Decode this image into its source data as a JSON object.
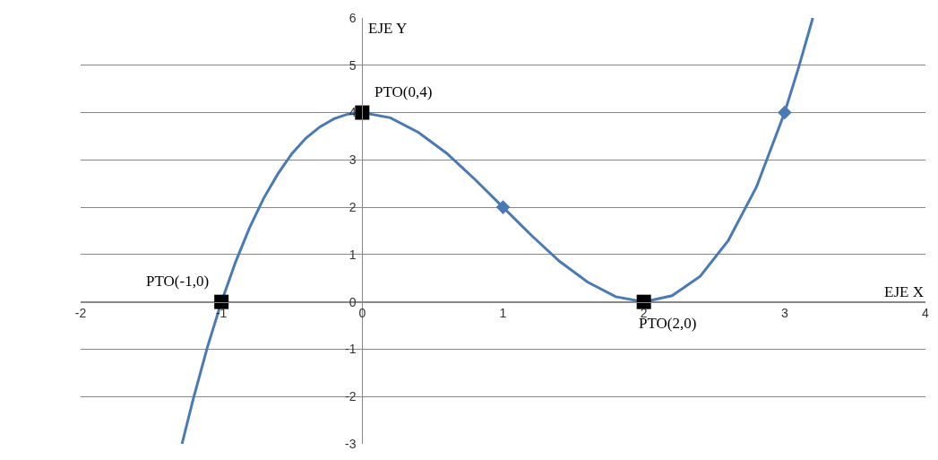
{
  "chart_data": {
    "type": "line",
    "xlabel": "EJE X",
    "ylabel": "EJE Y",
    "xlim": [
      -2,
      4
    ],
    "xticks": [
      -2,
      -1,
      0,
      1,
      2,
      3,
      4
    ],
    "ylim": [
      -3,
      6
    ],
    "yticks": [
      -3,
      -2,
      -1,
      0,
      1,
      2,
      3,
      4,
      5,
      6
    ],
    "grid": "y",
    "legend": false,
    "series": [
      {
        "color": "#4a7ab5",
        "marker": "none",
        "x": [
          -1.28,
          -1.2,
          -1.1,
          -1.0,
          -0.9,
          -0.8,
          -0.7,
          -0.6,
          -0.5,
          -0.4,
          -0.3,
          -0.2,
          -0.1,
          0,
          0.2,
          0.4,
          0.6,
          0.8,
          1.0,
          1.2,
          1.4,
          1.6,
          1.8,
          2.0,
          2.2,
          2.4,
          2.6,
          2.8,
          3.0,
          3.1,
          3.2
        ],
        "values": [
          -3.0,
          -2.05,
          -0.96,
          0,
          0.84,
          1.57,
          2.19,
          2.7,
          3.13,
          3.46,
          3.7,
          3.87,
          3.97,
          4,
          3.89,
          3.58,
          3.14,
          2.59,
          2,
          1.41,
          0.86,
          0.42,
          0.11,
          0,
          0.13,
          0.54,
          1.3,
          2.43,
          4,
          4.96,
          6.0
        ]
      },
      {
        "type": "scatter",
        "color": "#4a7ab5",
        "marker": "diamond",
        "x": [
          1,
          3
        ],
        "values": [
          2,
          4
        ]
      },
      {
        "type": "scatter",
        "color": "#000000",
        "marker": "square",
        "x": [
          -1,
          0,
          2
        ],
        "values": [
          0,
          4,
          0
        ]
      }
    ],
    "annotations": [
      {
        "text": "PTO(-1,0)",
        "x": -1,
        "y": 0
      },
      {
        "text": "PTO(0,4)",
        "x": 0,
        "y": 4
      },
      {
        "text": "PTO(2,0)",
        "x": 2,
        "y": 0
      }
    ]
  }
}
